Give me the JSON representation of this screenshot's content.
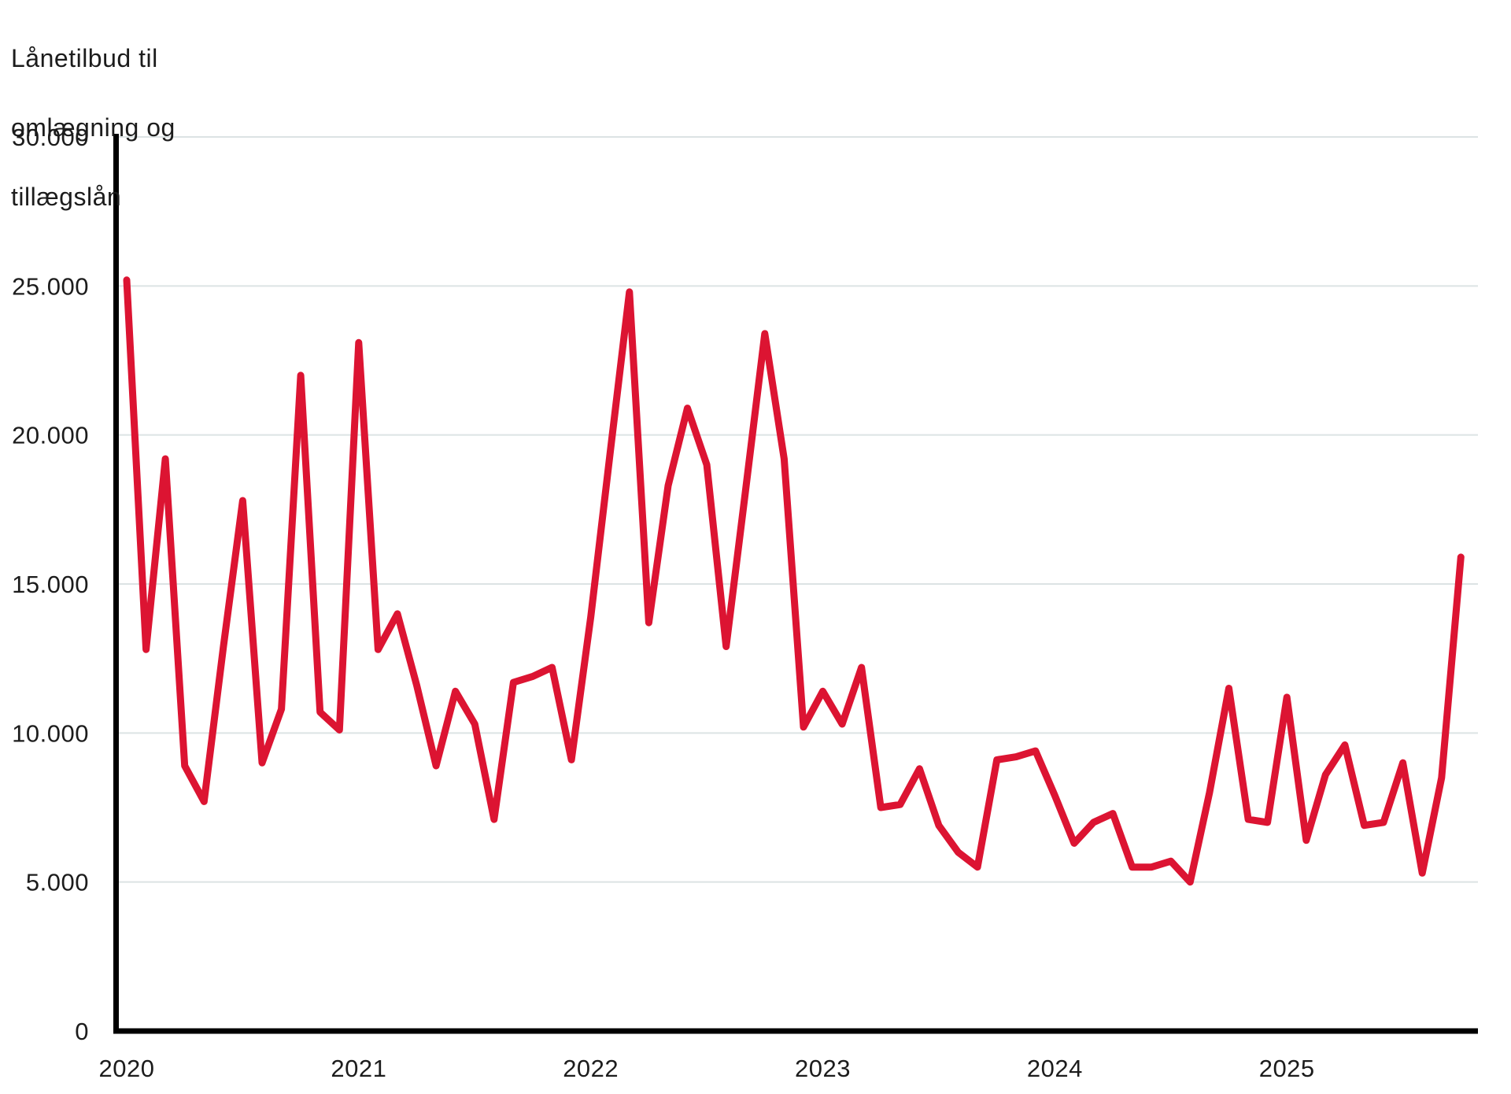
{
  "title": {
    "lines": [
      "Lånetilbud til",
      "omlægning og",
      "tillægslån"
    ]
  },
  "colors": {
    "line": "#dc1432",
    "grid": "#dce3e4",
    "axis": "#000000",
    "text": "#1c1c1c",
    "background": "#ffffff"
  },
  "chart_data": {
    "type": "line",
    "title": "Lånetilbud til omlægning og tillægslån",
    "xlabel": "",
    "ylabel": "Lånetilbud til omlægning og tillægslån",
    "ylim": [
      0,
      30000
    ],
    "grid": "horizontal",
    "legend_position": "none",
    "y_ticks": {
      "values": [
        30000,
        25000,
        20000,
        15000,
        10000,
        5000,
        0
      ],
      "labels": [
        "30.000",
        "25.000",
        "20.000",
        "15.000",
        "10.000",
        "5.000",
        "0"
      ]
    },
    "x_ticks": {
      "month_indices": [
        0,
        12,
        24,
        36,
        48,
        60
      ],
      "labels": [
        "2020",
        "2021",
        "2022",
        "2023",
        "2024",
        "2025"
      ]
    },
    "series": [
      {
        "name": "Lånetilbud til omlægning og tillægslån",
        "start": "2020-01",
        "frequency": "monthly",
        "end": "2025-10",
        "values": [
          25200,
          12800,
          19200,
          8900,
          7700,
          12900,
          17800,
          9000,
          10800,
          22000,
          10700,
          10100,
          23100,
          12800,
          14000,
          11600,
          8900,
          11400,
          10300,
          7100,
          11700,
          11900,
          12200,
          9100,
          13900,
          19400,
          24800,
          13700,
          18300,
          20900,
          19000,
          12900,
          18100,
          23400,
          19200,
          10200,
          11400,
          10300,
          12200,
          7500,
          7600,
          8800,
          6900,
          6000,
          5500,
          9100,
          9200,
          9400,
          7900,
          6300,
          7000,
          7300,
          5500,
          5500,
          5700,
          5000,
          8000,
          11500,
          7100,
          7000,
          11200,
          6400,
          8600,
          9600,
          6900,
          7000,
          9000,
          5300,
          8500,
          15900
        ]
      }
    ]
  }
}
